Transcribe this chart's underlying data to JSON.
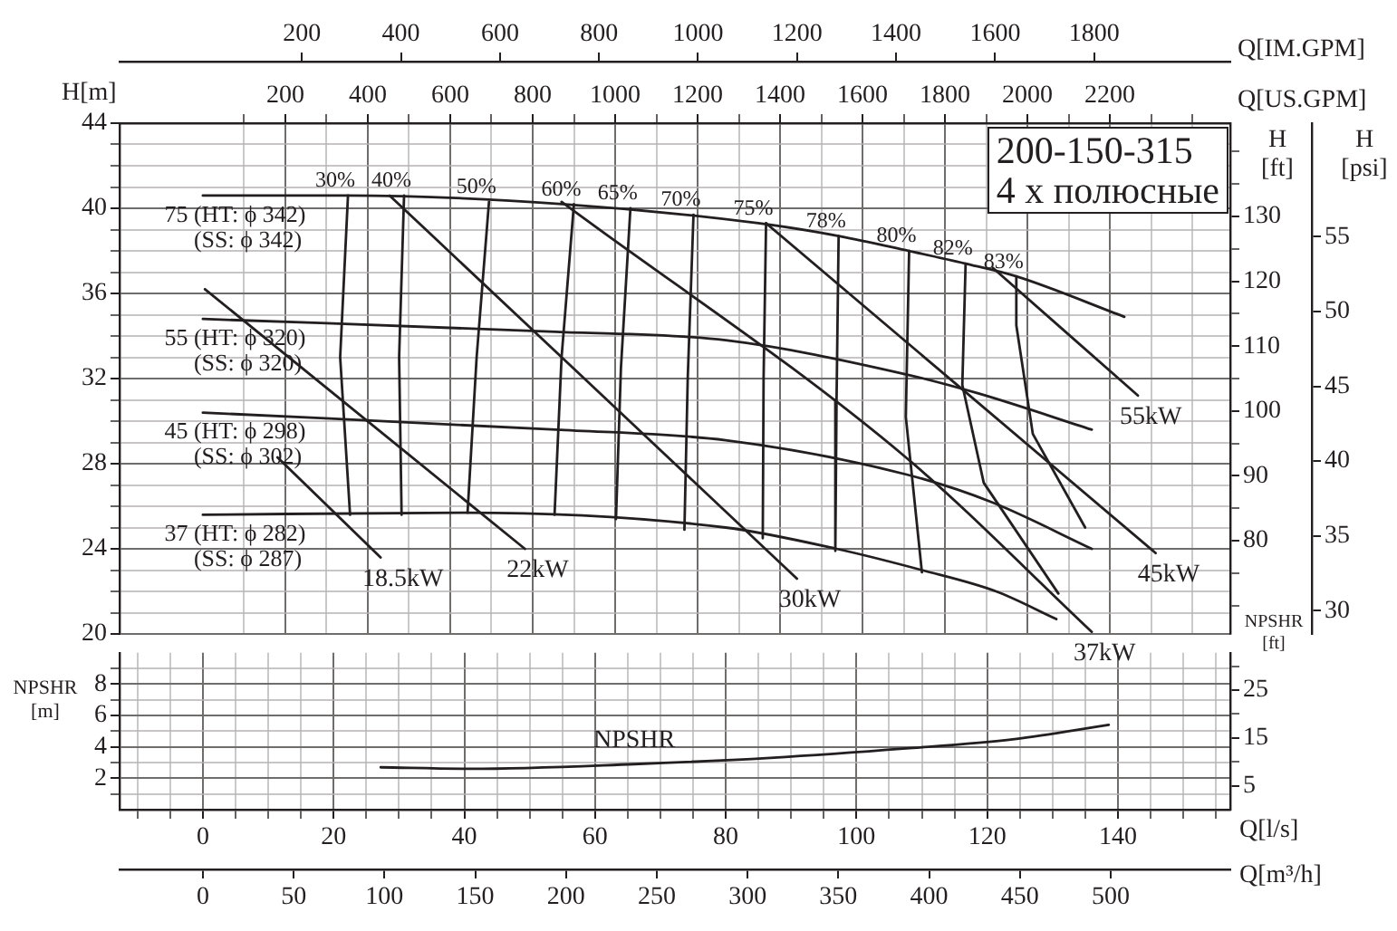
{
  "chart_data": [
    {
      "type": "line",
      "title": "200-150-315",
      "subtitle": "4 x полюсные",
      "xlabel": "Q[US.GPM]",
      "x2label": "Q[IM.GPM]",
      "ylabel": "H[m]",
      "y2label": "H [ft]",
      "y3label": "H [psi]",
      "xlim": [
        -202,
        2492
      ],
      "xticks": [
        {
          "value": 100,
          "label": null
        },
        200,
        {
          "value": 300,
          "label": null
        },
        400,
        {
          "value": 500,
          "label": null
        },
        600,
        {
          "value": 700,
          "label": null
        },
        800,
        {
          "value": 900,
          "label": null
        },
        1000,
        {
          "value": 1100,
          "label": null
        },
        1200,
        {
          "value": 1300,
          "label": null
        },
        1400,
        {
          "value": 1500,
          "label": null
        },
        1600,
        {
          "value": 1700,
          "label": null
        },
        1800,
        {
          "value": 1900,
          "label": null
        },
        2000,
        {
          "value": 2100,
          "label": null
        },
        2200,
        {
          "value": 2300,
          "label": null
        },
        {
          "value": 2400,
          "label": null
        }
      ],
      "x2lim": [
        -168.3,
        2075
      ],
      "x2ticks": [
        200,
        400,
        600,
        800,
        1000,
        1200,
        1400,
        1600,
        1800
      ],
      "ylim": [
        20,
        44
      ],
      "yticks": [
        20,
        {
          "value": 21,
          "label": null
        },
        {
          "value": 22,
          "label": null
        },
        {
          "value": 23,
          "label": null
        },
        24,
        {
          "value": 25,
          "label": null
        },
        {
          "value": 26,
          "label": null
        },
        {
          "value": 27,
          "label": null
        },
        28,
        {
          "value": 29,
          "label": null
        },
        {
          "value": 30,
          "label": null
        },
        {
          "value": 31,
          "label": null
        },
        32,
        {
          "value": 33,
          "label": null
        },
        {
          "value": 34,
          "label": null
        },
        {
          "value": 35,
          "label": null
        },
        36,
        {
          "value": 37,
          "label": null
        },
        {
          "value": 38,
          "label": null
        },
        {
          "value": 39,
          "label": null
        },
        40,
        {
          "value": 41,
          "label": null
        },
        {
          "value": 42,
          "label": null
        },
        {
          "value": 43,
          "label": null
        },
        44
      ],
      "y2lim": [
        65.6,
        144.4
      ],
      "y2ticks": [
        {
          "value": 70,
          "label": null
        },
        {
          "value": 75,
          "label": null
        },
        80,
        {
          "value": 85,
          "label": null
        },
        90,
        {
          "value": 95,
          "label": null
        },
        100,
        {
          "value": 105,
          "label": null
        },
        110,
        {
          "value": 115,
          "label": null
        },
        120,
        {
          "value": 125,
          "label": null
        },
        130,
        {
          "value": 135,
          "label": null
        },
        {
          "value": 140,
          "label": null
        }
      ],
      "y3lim": [
        28.45,
        62.58
      ],
      "y3ticks": [
        30,
        35,
        40,
        45,
        50,
        55
      ],
      "grid": true,
      "line_style": "solid",
      "series": [
        {
          "name": "75 (HT: ϕ 342) (SS: ϕ 342)",
          "color": "#231f20",
          "x": [
            0,
            349,
            872,
            1347,
            1542,
            1712,
            1850,
            1973,
            2235
          ],
          "values": [
            40.6,
            40.6,
            40.2,
            39.3,
            38.7,
            38.0,
            37.4,
            36.8,
            34.9
          ]
        },
        {
          "name": "55 (HT: ϕ 320) (SS: ϕ 320)",
          "color": "#231f20",
          "x": [
            0,
            856,
            1268,
            1705,
            1881,
            2156
          ],
          "values": [
            34.8,
            34.2,
            33.8,
            32.2,
            31.3,
            29.6
          ]
        },
        {
          "name": "45 (HT: ϕ 298) (SS: ϕ 302)",
          "color": "#231f20",
          "x": [
            0,
            856,
            1268,
            1705,
            1912,
            2156
          ],
          "values": [
            30.4,
            29.6,
            29.1,
            27.5,
            26.2,
            24.0
          ]
        },
        {
          "name": "37 (HT: ϕ 282) (SS: ϕ 287)",
          "color": "#231f20",
          "x": [
            0,
            634,
            1268,
            1537,
            1744,
            1924,
            2070
          ],
          "values": [
            25.6,
            25.7,
            25.0,
            24.0,
            23.0,
            22.0,
            20.7
          ]
        },
        {
          "name": "30%",
          "color": "#231f20",
          "x": [
            352,
            333,
            357
          ],
          "values": [
            40.6,
            33.0,
            25.6
          ]
        },
        {
          "name": "40%",
          "color": "#231f20",
          "x": [
            488,
            476,
            482
          ],
          "values": [
            40.6,
            33.0,
            25.6
          ]
        },
        {
          "name": "50%",
          "color": "#231f20",
          "x": [
            694,
            664,
            642
          ],
          "values": [
            40.3,
            33.0,
            25.7
          ]
        },
        {
          "name": "60%",
          "color": "#231f20",
          "x": [
            900,
            870,
            853
          ],
          "values": [
            40.2,
            33.0,
            25.6
          ]
        },
        {
          "name": "65%",
          "color": "#231f20",
          "x": [
            1037,
            1014,
            1002
          ],
          "values": [
            40.0,
            32.5,
            25.4
          ]
        },
        {
          "name": "70%",
          "color": "#231f20",
          "x": [
            1190,
            1176,
            1168
          ],
          "values": [
            39.7,
            32.0,
            24.9
          ]
        },
        {
          "name": "75%",
          "color": "#231f20",
          "x": [
            1366,
            1360,
            1358
          ],
          "values": [
            39.3,
            32.0,
            24.5
          ]
        },
        {
          "name": "78%",
          "color": "#231f20",
          "x": [
            1542,
            1537,
            1534
          ],
          "values": [
            38.7,
            31.0,
            23.9
          ]
        },
        {
          "name": "80%",
          "color": "#231f20",
          "x": [
            1713,
            1705,
            1744
          ],
          "values": [
            38.0,
            30.2,
            22.9
          ]
        },
        {
          "name": "82%",
          "color": "#231f20",
          "x": [
            1850,
            1842,
            1894,
            2075
          ],
          "values": [
            37.4,
            31.7,
            27.1,
            21.9
          ]
        },
        {
          "name": "83%",
          "color": "#231f20",
          "x": [
            1973,
            1973,
            2013,
            2140
          ],
          "values": [
            36.8,
            34.5,
            29.4,
            25.0
          ]
        },
        {
          "name": "18.5kW",
          "color": "#231f20",
          "x": [
            181,
            431
          ],
          "values": [
            28.3,
            23.6
          ]
        },
        {
          "name": "22kW",
          "color": "#231f20",
          "x": [
            5,
            781
          ],
          "values": [
            36.2,
            24.0
          ]
        },
        {
          "name": "30kW",
          "color": "#231f20",
          "x": [
            453,
            1441
          ],
          "values": [
            40.6,
            22.6
          ]
        },
        {
          "name": "37kW",
          "color": "#231f20",
          "x": [
            870,
            1705,
            2156
          ],
          "values": [
            40.3,
            28.3,
            20.1
          ]
        },
        {
          "name": "45kW",
          "color": "#231f20",
          "x": [
            1366,
            2311
          ],
          "values": [
            39.3,
            23.8
          ]
        },
        {
          "name": "55kW",
          "color": "#231f20",
          "x": [
            1916,
            2268
          ],
          "values": [
            37.2,
            31.2
          ]
        }
      ]
    },
    {
      "type": "line",
      "xlabel": "Q[l/s]",
      "x2label": "Q[m³/h]",
      "ylabel": "NPSHR [m]",
      "y2label": "NPSHR [ft]",
      "xlim": [
        -12.75,
        157.2
      ],
      "xticks": [
        {
          "value": -10,
          "label": null
        },
        {
          "value": -5,
          "label": null
        },
        0,
        {
          "value": 5,
          "label": null
        },
        {
          "value": 10,
          "label": null
        },
        {
          "value": 15,
          "label": null
        },
        20,
        {
          "value": 25,
          "label": null
        },
        {
          "value": 30,
          "label": null
        },
        {
          "value": 35,
          "label": null
        },
        40,
        {
          "value": 45,
          "label": null
        },
        {
          "value": 50,
          "label": null
        },
        {
          "value": 55,
          "label": null
        },
        60,
        {
          "value": 65,
          "label": null
        },
        {
          "value": 70,
          "label": null
        },
        {
          "value": 75,
          "label": null
        },
        80,
        {
          "value": 85,
          "label": null
        },
        {
          "value": 90,
          "label": null
        },
        {
          "value": 95,
          "label": null
        },
        100,
        {
          "value": 105,
          "label": null
        },
        {
          "value": 110,
          "label": null
        },
        {
          "value": 115,
          "label": null
        },
        120,
        {
          "value": 125,
          "label": null
        },
        {
          "value": 130,
          "label": null
        },
        {
          "value": 135,
          "label": null
        },
        140,
        {
          "value": 145,
          "label": null
        },
        {
          "value": 150,
          "label": null
        },
        {
          "value": 155,
          "label": null
        }
      ],
      "x2lim": [
        -45.9,
        565.9
      ],
      "x2ticks": [
        0,
        50,
        100,
        150,
        200,
        250,
        300,
        350,
        400,
        450,
        500
      ],
      "ylim": [
        0,
        10
      ],
      "yticks": [
        {
          "value": 1,
          "label": null
        },
        2,
        {
          "value": 3,
          "label": null
        },
        4,
        {
          "value": 5,
          "label": null
        },
        6,
        {
          "value": 7,
          "label": null
        },
        8,
        {
          "value": 9,
          "label": null
        }
      ],
      "y2lim": [
        0,
        32.8
      ],
      "y2ticks": [
        5,
        {
          "value": 10,
          "label": null
        },
        15,
        {
          "value": 20,
          "label": null
        },
        25,
        {
          "value": 30,
          "label": null
        }
      ],
      "grid": true,
      "line_style": "solid",
      "series": [
        {
          "name": "NPSHR",
          "color": "#231f20",
          "x": [
            27.2,
            41,
            66,
            86.8,
            107.6,
            124.2,
            138.6
          ],
          "values": [
            2.7,
            2.6,
            2.9,
            3.3,
            3.9,
            4.5,
            5.4
          ]
        }
      ]
    }
  ]
}
